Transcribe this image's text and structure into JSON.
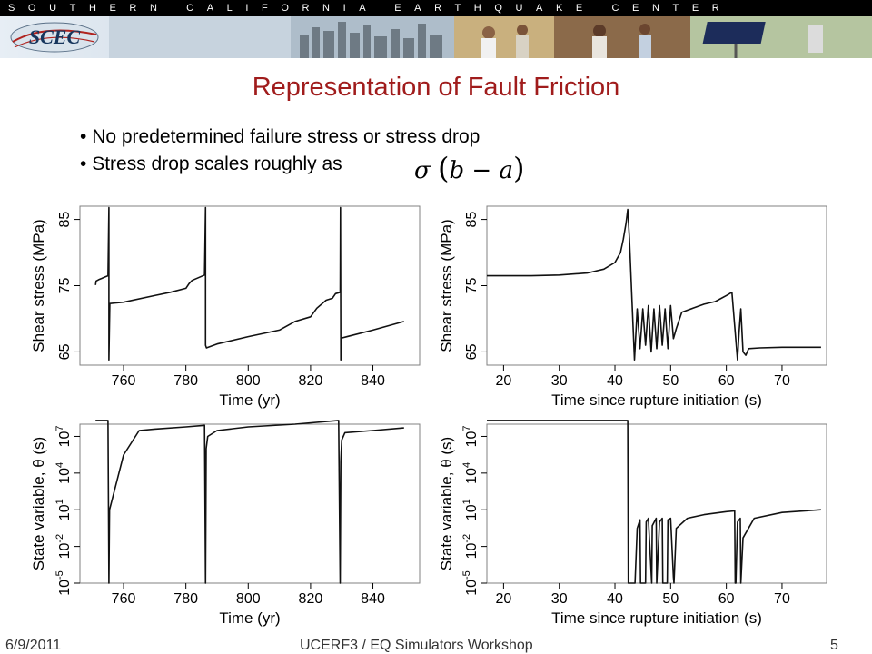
{
  "header": {
    "banner_text": "SOUTHERN CALIFORNIA EARTHQUAKE CENTER",
    "logo_text": "SCEC"
  },
  "slide": {
    "title": "Representation of Fault Friction",
    "bullets": [
      "No predetermined failure stress or stress drop",
      "Stress drop scales roughly as"
    ],
    "formula": {
      "sigma": "σ",
      "expr": "b − a"
    }
  },
  "footer": {
    "date": "6/9/2011",
    "event": "UCERF3 / EQ Simulators Workshop",
    "page": "5"
  },
  "chart_data": [
    {
      "type": "line",
      "xlabel": "Time (yr)",
      "ylabel": "Shear stress (MPa)",
      "xlim": [
        746,
        855
      ],
      "ylim": [
        63,
        87
      ],
      "xticks": [
        760,
        780,
        800,
        820,
        840
      ],
      "yticks": [
        65,
        75,
        85
      ],
      "series": [
        {
          "x": [
            751,
            751.2,
            752,
            753,
            754,
            755,
            755.3,
            755.3,
            755.6,
            760,
            770,
            775,
            780,
            781,
            782,
            786,
            786.3,
            786.3,
            786.6,
            790,
            800,
            810,
            815,
            820,
            822,
            825,
            827,
            828,
            829.5,
            829.6,
            829.7,
            829.8,
            830,
            840,
            850
          ],
          "y": [
            75.1,
            75.7,
            75.9,
            76.1,
            76.3,
            76.5,
            86.8,
            63.8,
            72.3,
            72.5,
            73.5,
            74,
            74.6,
            75.3,
            75.8,
            76.6,
            86.8,
            66,
            65.6,
            66.2,
            67.3,
            68.3,
            69.6,
            70.3,
            71.6,
            72.8,
            73.1,
            73.8,
            74.0,
            86.8,
            63.8,
            67.0,
            67.1,
            68.3,
            69.6
          ]
        }
      ]
    },
    {
      "type": "line",
      "xlabel": "Time since rupture initiation (s)",
      "ylabel": "Shear stress (MPa)",
      "xlim": [
        17,
        78
      ],
      "ylim": [
        63,
        87
      ],
      "xticks": [
        20,
        30,
        40,
        50,
        60,
        70
      ],
      "yticks": [
        65,
        75,
        85
      ],
      "series": [
        {
          "x": [
            17,
            25,
            30,
            35,
            38,
            40,
            41,
            41.5,
            42,
            42.3,
            42.6,
            43,
            43.5,
            44,
            44.5,
            45,
            45.5,
            46,
            46.5,
            47,
            47.5,
            48,
            48.5,
            49,
            49.5,
            50,
            50.5,
            51,
            52,
            54,
            56,
            58,
            60,
            61,
            62,
            62.3,
            62.6,
            63,
            63.5,
            64,
            66,
            70,
            77
          ],
          "y": [
            76.5,
            76.5,
            76.6,
            76.9,
            77.5,
            78.5,
            80,
            82,
            84.5,
            86.5,
            82,
            74,
            63.8,
            71.5,
            65.5,
            71.5,
            66,
            72,
            65,
            71.5,
            65.5,
            72,
            66,
            71.5,
            65.5,
            72,
            67,
            68.5,
            71,
            71.6,
            72.2,
            72.6,
            73.5,
            74,
            63.8,
            68,
            71.5,
            65,
            64.5,
            65.5,
            65.6,
            65.7,
            65.7
          ]
        }
      ]
    },
    {
      "type": "line",
      "xlabel": "Time (yr)",
      "ylabel": "State variable, θ (s)",
      "ylog": true,
      "xlim": [
        746,
        855
      ],
      "ylim": [
        1e-05,
        100000000.0
      ],
      "xticks": [
        760,
        780,
        800,
        820,
        840
      ],
      "yticks": [
        "10^-5",
        "10^-2",
        "10^1",
        "10^4",
        "10^7"
      ],
      "series": [
        {
          "x": [
            751,
            755,
            755.3,
            755.5,
            760,
            765,
            770,
            780,
            786,
            786.3,
            786.5,
            787,
            790,
            800,
            815,
            829,
            829.5,
            829.7,
            830,
            831,
            840,
            850
          ],
          "y": [
            200000000.0,
            200000000.0,
            4e-06,
            10,
            300000.0,
            30000000.0,
            40000000.0,
            60000000.0,
            80000000.0,
            4e-06,
            1000000.0,
            10000000.0,
            30000000.0,
            60000000.0,
            100000000.0,
            200000000.0,
            4e-06,
            100000.0,
            5000000.0,
            20000000.0,
            30000000.0,
            50000000.0
          ]
        }
      ]
    },
    {
      "type": "line",
      "xlabel": "Time since rupture initiation (s)",
      "ylabel": "State variable, θ (s)",
      "ylog": true,
      "xlim": [
        17,
        78
      ],
      "ylim": [
        1e-05,
        100000000.0
      ],
      "xticks": [
        20,
        30,
        40,
        50,
        60,
        70
      ],
      "yticks": [
        "10^-5",
        "10^-2",
        "10^1",
        "10^4",
        "10^7"
      ],
      "series": [
        {
          "x": [
            17,
            42.3,
            42.4,
            43.5,
            43.6,
            44,
            44.5,
            44.6,
            45.5,
            45.6,
            46,
            46.6,
            46.7,
            47.4,
            47.5,
            48,
            48.5,
            48.6,
            49.4,
            49.5,
            50,
            50.5,
            50.6,
            51,
            53,
            56,
            60,
            61.5,
            61.6,
            61.7,
            62,
            62.5,
            62.6,
            63,
            65,
            70,
            77
          ],
          "y": [
            200000000.0,
            200000000.0,
            1e-05,
            1e-05,
            1e-05,
            0.3,
            1.5,
            1e-05,
            1e-05,
            1,
            2,
            1e-05,
            0.5,
            2,
            1e-05,
            1,
            2,
            1e-05,
            1e-05,
            1.5,
            2,
            3e-05,
            1e-05,
            0.3,
            2,
            4,
            7,
            8,
            1e-05,
            1e-05,
            1,
            2,
            1e-05,
            0.05,
            2,
            6,
            10
          ]
        }
      ]
    }
  ]
}
